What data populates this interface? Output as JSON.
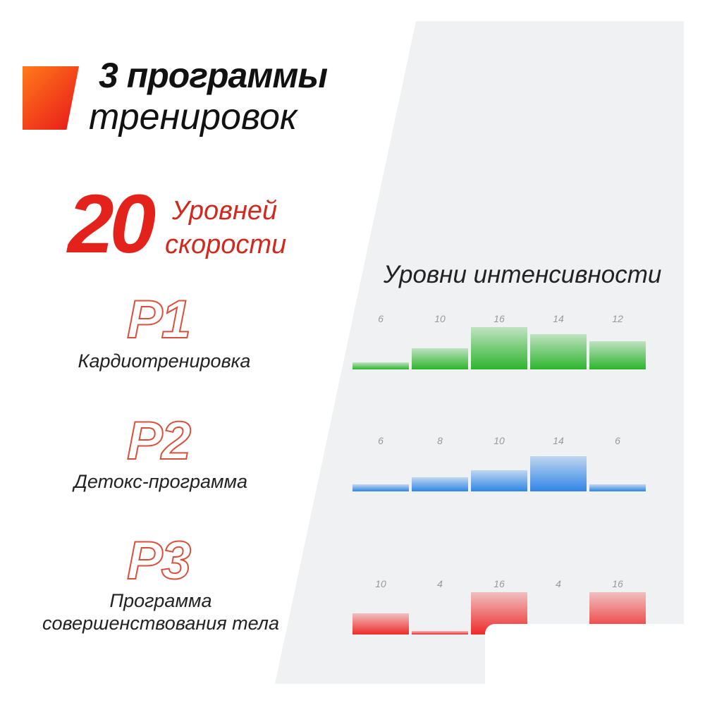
{
  "header": {
    "line1": "3 программы",
    "line2": "тренировок"
  },
  "speed": {
    "number": "20",
    "line1": "Уровней",
    "line2": "скорости"
  },
  "programs": [
    {
      "code": "P1",
      "name": "Кардиотренировка"
    },
    {
      "code": "P2",
      "name": "Детокс-программа"
    },
    {
      "code": "P3",
      "name_line1": "Программа",
      "name_line2": "совершенствования тела"
    }
  ],
  "chart_data": [
    {
      "type": "bar",
      "title": "Уровни интенсивности",
      "values": [
        6,
        10,
        16,
        14,
        12
      ],
      "color": "#2db52d"
    },
    {
      "type": "bar",
      "values": [
        6,
        8,
        10,
        14,
        6
      ],
      "color": "#2f86e6"
    },
    {
      "type": "bar",
      "values": [
        10,
        4,
        16,
        4,
        16
      ],
      "color": "#ef2b2b"
    }
  ]
}
